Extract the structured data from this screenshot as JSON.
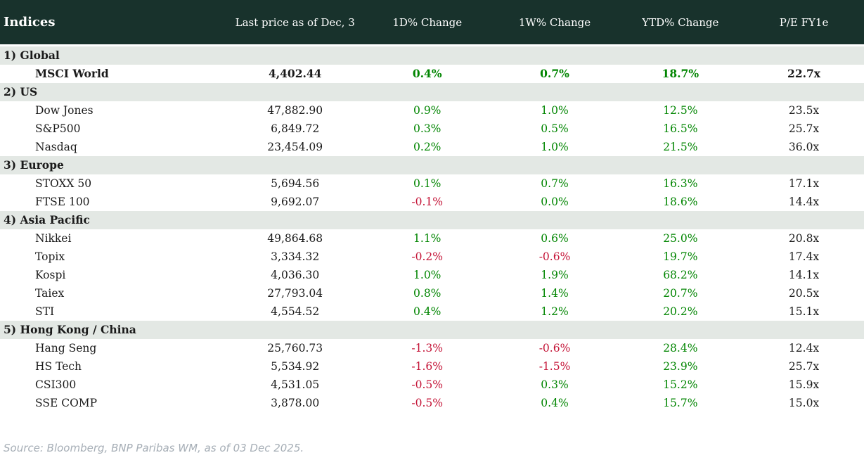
{
  "chart_data": {
    "type": "table",
    "title": "Indices",
    "columns": [
      "Last price as of Dec, 3",
      "1D% Change",
      "1W% Change",
      "YTD% Change",
      "P/E FY1e"
    ],
    "sections": [
      {
        "label": "1) Global",
        "rows": [
          {
            "name": "MSCI World",
            "price": "4,402.44",
            "d1": "0.4%",
            "w1": "0.7%",
            "ytd": "18.7%",
            "pe": "22.7x",
            "bold": true
          }
        ]
      },
      {
        "label": "2) US",
        "rows": [
          {
            "name": "Dow Jones",
            "price": "47,882.90",
            "d1": "0.9%",
            "w1": "1.0%",
            "ytd": "12.5%",
            "pe": "23.5x"
          },
          {
            "name": "S&P500",
            "price": "6,849.72",
            "d1": "0.3%",
            "w1": "0.5%",
            "ytd": "16.5%",
            "pe": "25.7x"
          },
          {
            "name": "Nasdaq",
            "price": "23,454.09",
            "d1": "0.2%",
            "w1": "1.0%",
            "ytd": "21.5%",
            "pe": "36.0x"
          }
        ]
      },
      {
        "label": "3) Europe",
        "rows": [
          {
            "name": "STOXX 50",
            "price": "5,694.56",
            "d1": "0.1%",
            "w1": "0.7%",
            "ytd": "16.3%",
            "pe": "17.1x"
          },
          {
            "name": "FTSE 100",
            "price": "9,692.07",
            "d1": "-0.1%",
            "w1": "0.0%",
            "ytd": "18.6%",
            "pe": "14.4x"
          }
        ]
      },
      {
        "label": "4) Asia Pacific",
        "rows": [
          {
            "name": "Nikkei",
            "price": "49,864.68",
            "d1": "1.1%",
            "w1": "0.6%",
            "ytd": "25.0%",
            "pe": "20.8x"
          },
          {
            "name": "Topix",
            "price": "3,334.32",
            "d1": "-0.2%",
            "w1": "-0.6%",
            "ytd": "19.7%",
            "pe": "17.4x"
          },
          {
            "name": "Kospi",
            "price": "4,036.30",
            "d1": "1.0%",
            "w1": "1.9%",
            "ytd": "68.2%",
            "pe": "14.1x"
          },
          {
            "name": "Taiex",
            "price": "27,793.04",
            "d1": "0.8%",
            "w1": "1.4%",
            "ytd": "20.7%",
            "pe": "20.5x"
          },
          {
            "name": "STI",
            "price": "4,554.52",
            "d1": "0.4%",
            "w1": "1.2%",
            "ytd": "20.2%",
            "pe": "15.1x"
          }
        ]
      },
      {
        "label": "5) Hong Kong / China",
        "rows": [
          {
            "name": "Hang Seng",
            "price": "25,760.73",
            "d1": "-1.3%",
            "w1": "-0.6%",
            "ytd": "28.4%",
            "pe": "12.4x"
          },
          {
            "name": "HS Tech",
            "price": "5,534.92",
            "d1": "-1.6%",
            "w1": "-1.5%",
            "ytd": "23.9%",
            "pe": "25.7x"
          },
          {
            "name": "CSI300",
            "price": "4,531.05",
            "d1": "-0.5%",
            "w1": "0.3%",
            "ytd": "15.2%",
            "pe": "15.9x"
          },
          {
            "name": "SSE COMP",
            "price": "3,878.00",
            "d1": "-0.5%",
            "w1": "0.4%",
            "ytd": "15.7%",
            "pe": "15.0x"
          }
        ]
      }
    ]
  },
  "footer": {
    "source": "Source: Bloomberg, BNP Paribas WM, as of 03 Dec 2025."
  },
  "colors": {
    "header_bg": "#18322c",
    "section_bg": "#e3e8e4",
    "positive": "#008500",
    "negative": "#c41336",
    "text": "#1a1a1a",
    "footer_text": "#a6aeb6"
  }
}
